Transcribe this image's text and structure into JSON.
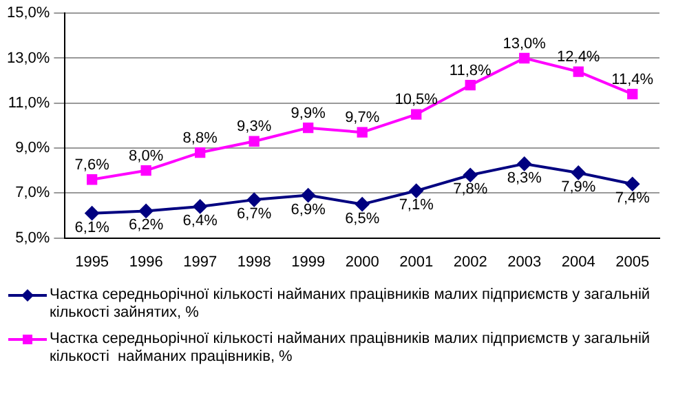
{
  "chart_data": {
    "type": "line",
    "categories": [
      "1995",
      "1996",
      "1997",
      "1998",
      "1999",
      "2000",
      "2001",
      "2002",
      "2003",
      "2004",
      "2005"
    ],
    "series": [
      {
        "name": "Частка середньорічної кількості найманих працівників малих підприємств у загальній кількості зайнятих, %",
        "color": "#000080",
        "marker": "diamond",
        "values": [
          6.1,
          6.2,
          6.4,
          6.7,
          6.9,
          6.5,
          7.1,
          7.8,
          8.3,
          7.9,
          7.4
        ],
        "value_labels": [
          "6,1%",
          "6,2%",
          "6,4%",
          "6,7%",
          "6,9%",
          "6,5%",
          "7,1%",
          "7,8%",
          "8,3%",
          "7,9%",
          "7,4%"
        ]
      },
      {
        "name": "Частка середньорічної кількості найманих працівників малих підприємств у загальній кількості  найманих працівників, %",
        "color": "#ff00ff",
        "marker": "square",
        "values": [
          7.6,
          8.0,
          8.8,
          9.3,
          9.9,
          9.7,
          10.5,
          11.8,
          13.0,
          12.4,
          11.4
        ],
        "value_labels": [
          "7,6%",
          "8,0%",
          "8,8%",
          "9,3%",
          "9,9%",
          "9,7%",
          "10,5%",
          "11,8%",
          "13,0%",
          "12,4%",
          "11,4%"
        ]
      }
    ],
    "ylim": [
      5,
      15
    ],
    "yticks": [
      {
        "value": 5,
        "label": "5,0%"
      },
      {
        "value": 7,
        "label": "7,0%"
      },
      {
        "value": 9,
        "label": "9,0%"
      },
      {
        "value": 11,
        "label": "11,0%"
      },
      {
        "value": 13,
        "label": "13,0%"
      },
      {
        "value": 15,
        "label": "15,0%"
      }
    ],
    "grid": "y",
    "legend": "bottom"
  }
}
